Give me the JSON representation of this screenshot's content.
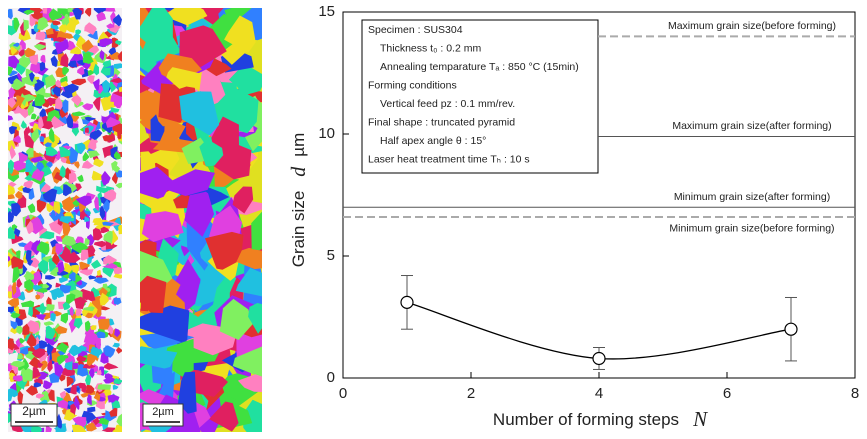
{
  "images": [
    {
      "scale_label": "2µm"
    },
    {
      "scale_label": "2µm"
    }
  ],
  "chart_data": {
    "type": "scatter",
    "x_label": "Number of forming steps",
    "x_symbol": "N",
    "y_label": "Grain size",
    "y_symbol": "d",
    "y_unit": "µm",
    "xlim": [
      0,
      8
    ],
    "xticks": [
      0,
      2,
      4,
      6,
      8
    ],
    "ylim": [
      0,
      15
    ],
    "yticks": [
      0,
      5,
      10,
      15
    ],
    "x": [
      1,
      4,
      7
    ],
    "values": [
      3.1,
      0.8,
      2.0
    ],
    "errors": [
      1.1,
      0.45,
      1.3
    ],
    "reference_lines": [
      {
        "label": "Maximum grain size(before forming)",
        "value": 14.0,
        "style": "dashed"
      },
      {
        "label": "Maximum grain size(after forming)",
        "value": 9.9,
        "style": "solid"
      },
      {
        "label": "Minimum grain size(after forming)",
        "value": 7.0,
        "style": "solid"
      },
      {
        "label": "Minimum grain size(before forming)",
        "value": 6.6,
        "style": "dashed"
      }
    ],
    "info_box": [
      "Specimen : SUS304",
      "Thickness  t₀ : 0.2 mm",
      "Annealing temparature Tₐ : 850 °C (15min)",
      "Forming conditions",
      "Vertical feed     pz : 0.1 mm/rev.",
      "Final shape : truncated pyramid",
      "Half apex angle   θ : 15°",
      "Laser heat treatment time Tₕ : 10 s"
    ]
  }
}
